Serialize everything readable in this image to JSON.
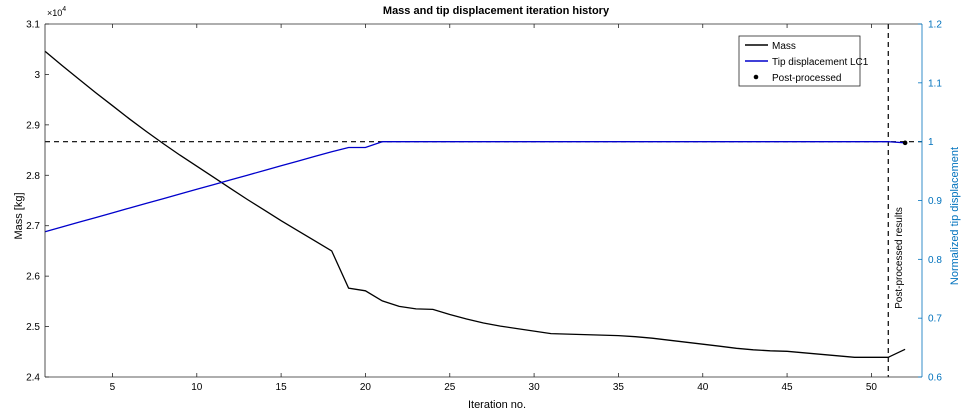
{
  "chart_data": {
    "type": "line",
    "title": "Mass and tip displacement iteration history",
    "xlabel": "Iteration no.",
    "ylabel_left": "Mass [kg]",
    "ylabel_right": "Normalized tip displacement",
    "left_exponent_label": "×10",
    "left_exponent_power": "4",
    "xlim": [
      1,
      53
    ],
    "ylim_left": [
      2.4,
      3.1
    ],
    "ylim_right": [
      0.6,
      1.2
    ],
    "x_ticks": [
      5,
      10,
      15,
      20,
      25,
      30,
      35,
      40,
      45,
      50
    ],
    "x_tick_labels": [
      "5",
      "10",
      "15",
      "20",
      "25",
      "30",
      "35",
      "40",
      "45",
      "50"
    ],
    "y_left_ticks": [
      2.4,
      2.5,
      2.6,
      2.7,
      2.8,
      2.9,
      3.0,
      3.1
    ],
    "y_left_tick_labels": [
      "2.4",
      "2.5",
      "2.6",
      "2.7",
      "2.8",
      "2.9",
      "3",
      "3.1"
    ],
    "y_right_ticks": [
      0.6,
      0.7,
      0.8,
      0.9,
      1.0,
      1.1,
      1.2
    ],
    "y_right_tick_labels": [
      "0.6",
      "0.7",
      "0.8",
      "0.9",
      "1",
      "1.1",
      "1.2"
    ],
    "right_axis_color": "#0072bd",
    "legend_position": "top-right",
    "series": [
      {
        "name": "Mass",
        "axis": "left",
        "color": "#000000",
        "x": [
          1,
          2,
          3,
          4,
          5,
          6,
          7,
          8,
          9,
          10,
          11,
          12,
          13,
          14,
          15,
          16,
          17,
          18,
          19,
          20,
          21,
          22,
          23,
          24,
          25,
          26,
          27,
          28,
          29,
          30,
          31,
          32,
          33,
          34,
          35,
          36,
          37,
          38,
          39,
          40,
          41,
          42,
          43,
          44,
          45,
          46,
          47,
          48,
          49,
          50,
          51,
          52
        ],
        "y": [
          3.046,
          3.018,
          2.991,
          2.964,
          2.938,
          2.912,
          2.887,
          2.863,
          2.84,
          2.818,
          2.796,
          2.774,
          2.752,
          2.731,
          2.71,
          2.69,
          2.67,
          2.65,
          2.576,
          2.571,
          2.551,
          2.54,
          2.535,
          2.534,
          2.524,
          2.515,
          2.507,
          2.501,
          2.496,
          2.491,
          2.486,
          2.485,
          2.484,
          2.483,
          2.482,
          2.48,
          2.477,
          2.473,
          2.469,
          2.465,
          2.461,
          2.457,
          2.454,
          2.452,
          2.451,
          2.448,
          2.445,
          2.442,
          2.439,
          2.439,
          2.439,
          2.455
        ]
      },
      {
        "name": "Tip displacement LC1",
        "axis": "right",
        "color": "#0000cc",
        "x": [
          1,
          2,
          3,
          4,
          5,
          6,
          7,
          8,
          9,
          10,
          11,
          12,
          13,
          14,
          15,
          16,
          17,
          18,
          19,
          20,
          21,
          22,
          23,
          24,
          25,
          26,
          27,
          28,
          29,
          30,
          31,
          32,
          33,
          34,
          35,
          36,
          37,
          38,
          39,
          40,
          41,
          42,
          43,
          44,
          45,
          46,
          47,
          48,
          49,
          50,
          51,
          52
        ],
        "y": [
          0.847,
          0.855,
          0.863,
          0.871,
          0.879,
          0.887,
          0.895,
          0.903,
          0.911,
          0.919,
          0.927,
          0.935,
          0.943,
          0.951,
          0.959,
          0.967,
          0.975,
          0.983,
          0.99,
          0.99,
          1.0,
          1.0,
          1.0,
          1.0,
          1.0,
          1.0,
          1.0,
          1.0,
          1.0,
          1.0,
          1.0,
          1.0,
          1.0,
          1.0,
          1.0,
          1.0,
          1.0,
          1.0,
          1.0,
          1.0,
          1.0,
          1.0,
          1.0,
          1.0,
          1.0,
          1.0,
          1.0,
          1.0,
          1.0,
          1.0,
          1.0,
          0.998
        ]
      },
      {
        "name": "Post-processed",
        "axis": "right",
        "color": "#000000",
        "marker": "dot",
        "x": [
          52
        ],
        "y": [
          0.998
        ]
      }
    ],
    "reference_lines": [
      {
        "type": "horizontal",
        "axis": "right",
        "value": 1.0,
        "style": "dashed",
        "color": "#000000"
      },
      {
        "type": "vertical",
        "value": 51.0,
        "style": "dashed",
        "color": "#000000",
        "label": "Post-processed results"
      }
    ]
  }
}
